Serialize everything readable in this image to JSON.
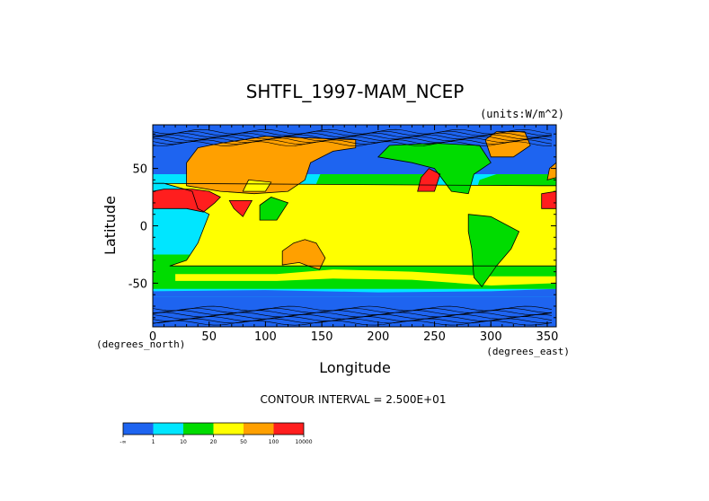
{
  "chart_data": {
    "type": "heatmap",
    "title": "SHTFL_1997-MAM_NCEP",
    "units": "(units:W/m^2)",
    "xlabel": "Longitude",
    "ylabel": "Latitude",
    "x_unit_note": "(degrees_east)",
    "y_unit_note": "(degrees_north)",
    "xlim": [
      0,
      358
    ],
    "ylim": [
      -88,
      88
    ],
    "xticks": [
      0,
      50,
      100,
      150,
      200,
      250,
      300,
      350
    ],
    "yticks": [
      -50,
      0,
      50
    ],
    "contour_interval_text": "CONTOUR INTERVAL = 2.500E+01",
    "legend": {
      "placement": "bottom-left",
      "colors": [
        "#1e64f0",
        "#00e6ff",
        "#00dc00",
        "#ffff00",
        "#ffa000",
        "#ff1e1e"
      ],
      "labels": [
        "-∞",
        "1",
        "10",
        "20",
        "50",
        "100",
        "10000"
      ]
    },
    "land_color": "#f5a000",
    "regions": [
      {
        "name": "ocean-tropics-cyan",
        "color": "#00e6ff",
        "polygon": [
          [
            0,
            -25
          ],
          [
            358,
            -25
          ],
          [
            358,
            25
          ],
          [
            0,
            25
          ]
        ]
      },
      {
        "name": "ocean-south-green",
        "color": "#00dc00",
        "polygon": [
          [
            0,
            -55
          ],
          [
            358,
            -55
          ],
          [
            358,
            -25
          ],
          [
            0,
            -25
          ]
        ]
      },
      {
        "name": "south-yellow-band",
        "color": "#ffff00",
        "polygon": [
          [
            20,
            -42
          ],
          [
            110,
            -42
          ],
          [
            160,
            -38
          ],
          [
            230,
            -40
          ],
          [
            300,
            -44
          ],
          [
            358,
            -44
          ],
          [
            358,
            -50
          ],
          [
            300,
            -52
          ],
          [
            230,
            -47
          ],
          [
            160,
            -46
          ],
          [
            110,
            -48
          ],
          [
            20,
            -48
          ]
        ]
      },
      {
        "name": "south-blue-band",
        "color": "#1e64f0",
        "polygon": [
          [
            0,
            -62
          ],
          [
            358,
            -62
          ],
          [
            358,
            -55
          ],
          [
            300,
            -57
          ],
          [
            200,
            -58
          ],
          [
            100,
            -56
          ],
          [
            0,
            -57
          ]
        ]
      },
      {
        "name": "antarctic-blue",
        "color": "#1e64f0",
        "polygon": [
          [
            0,
            -88
          ],
          [
            358,
            -88
          ],
          [
            358,
            -62
          ],
          [
            0,
            -62
          ]
        ]
      },
      {
        "name": "north-pacific-green",
        "color": "#00dc00",
        "polygon": [
          [
            140,
            25
          ],
          [
            240,
            25
          ],
          [
            245,
            45
          ],
          [
            200,
            50
          ],
          [
            150,
            48
          ]
        ]
      },
      {
        "name": "north-atlantic-green",
        "color": "#00dc00",
        "polygon": [
          [
            285,
            25
          ],
          [
            358,
            25
          ],
          [
            358,
            45
          ],
          [
            320,
            50
          ],
          [
            290,
            40
          ]
        ]
      },
      {
        "name": "north-blue",
        "color": "#1e64f0",
        "polygon": [
          [
            0,
            45
          ],
          [
            358,
            45
          ],
          [
            358,
            88
          ],
          [
            0,
            88
          ]
        ]
      },
      {
        "name": "tropic-green-strip",
        "color": "#00dc00",
        "polygon": [
          [
            60,
            5
          ],
          [
            100,
            5
          ],
          [
            100,
            15
          ],
          [
            60,
            15
          ]
        ]
      },
      {
        "name": "tropic-green-pacific",
        "color": "#00dc00",
        "polygon": [
          [
            200,
            -15
          ],
          [
            280,
            -15
          ],
          [
            280,
            -5
          ],
          [
            200,
            -5
          ]
        ]
      },
      {
        "name": "africa",
        "color": "#ffff00",
        "polygon": [
          [
            345,
            35
          ],
          [
            358,
            35
          ],
          [
            358,
            -35
          ],
          [
            15,
            -35
          ],
          [
            30,
            -30
          ],
          [
            40,
            -15
          ],
          [
            50,
            10
          ],
          [
            40,
            15
          ],
          [
            35,
            30
          ],
          [
            10,
            37
          ],
          [
            0,
            37
          ]
        ]
      },
      {
        "name": "arabia-sahara",
        "color": "#ff1e1e",
        "polygon": [
          [
            0,
            15
          ],
          [
            30,
            15
          ],
          [
            45,
            12
          ],
          [
            55,
            20
          ],
          [
            60,
            25
          ],
          [
            50,
            30
          ],
          [
            35,
            32
          ],
          [
            10,
            32
          ],
          [
            0,
            30
          ]
        ]
      },
      {
        "name": "sahara-west",
        "color": "#ff1e1e",
        "polygon": [
          [
            345,
            15
          ],
          [
            358,
            15
          ],
          [
            358,
            30
          ],
          [
            345,
            28
          ]
        ]
      },
      {
        "name": "india",
        "color": "#ff1e1e",
        "polygon": [
          [
            68,
            22
          ],
          [
            88,
            22
          ],
          [
            80,
            8
          ],
          [
            72,
            15
          ]
        ]
      },
      {
        "name": "asia",
        "color": "#ffa000",
        "polygon": [
          [
            30,
            35
          ],
          [
            60,
            30
          ],
          [
            90,
            28
          ],
          [
            120,
            30
          ],
          [
            135,
            40
          ],
          [
            140,
            55
          ],
          [
            160,
            65
          ],
          [
            180,
            68
          ],
          [
            180,
            75
          ],
          [
            100,
            78
          ],
          [
            60,
            72
          ],
          [
            40,
            68
          ],
          [
            30,
            55
          ]
        ]
      },
      {
        "name": "tibet",
        "color": "#ffff00",
        "polygon": [
          [
            80,
            30
          ],
          [
            100,
            30
          ],
          [
            105,
            38
          ],
          [
            85,
            40
          ]
        ]
      },
      {
        "name": "se-asia",
        "color": "#00dc00",
        "polygon": [
          [
            95,
            5
          ],
          [
            110,
            5
          ],
          [
            120,
            20
          ],
          [
            105,
            25
          ],
          [
            95,
            18
          ]
        ]
      },
      {
        "name": "australia",
        "color": "#ffa000",
        "polygon": [
          [
            115,
            -22
          ],
          [
            125,
            -15
          ],
          [
            135,
            -12
          ],
          [
            145,
            -15
          ],
          [
            153,
            -28
          ],
          [
            148,
            -38
          ],
          [
            138,
            -35
          ],
          [
            130,
            -32
          ],
          [
            115,
            -34
          ]
        ]
      },
      {
        "name": "n-america-west",
        "color": "#ff1e1e",
        "polygon": [
          [
            235,
            30
          ],
          [
            250,
            30
          ],
          [
            255,
            45
          ],
          [
            245,
            50
          ],
          [
            238,
            42
          ]
        ]
      },
      {
        "name": "n-america",
        "color": "#00dc00",
        "polygon": [
          [
            200,
            60
          ],
          [
            230,
            55
          ],
          [
            250,
            50
          ],
          [
            265,
            30
          ],
          [
            280,
            28
          ],
          [
            285,
            45
          ],
          [
            300,
            55
          ],
          [
            290,
            70
          ],
          [
            250,
            72
          ],
          [
            210,
            70
          ]
        ]
      },
      {
        "name": "s-america",
        "color": "#00dc00",
        "polygon": [
          [
            280,
            10
          ],
          [
            300,
            8
          ],
          [
            325,
            -5
          ],
          [
            318,
            -20
          ],
          [
            305,
            -35
          ],
          [
            292,
            -53
          ],
          [
            285,
            -45
          ],
          [
            283,
            -20
          ],
          [
            280,
            -5
          ]
        ]
      },
      {
        "name": "greenland",
        "color": "#ffa000",
        "polygon": [
          [
            300,
            60
          ],
          [
            320,
            60
          ],
          [
            335,
            70
          ],
          [
            330,
            82
          ],
          [
            305,
            82
          ],
          [
            295,
            75
          ]
        ]
      },
      {
        "name": "europe",
        "color": "#ffa000",
        "polygon": [
          [
            350,
            40
          ],
          [
            358,
            42
          ],
          [
            358,
            55
          ],
          [
            352,
            50
          ]
        ]
      }
    ]
  }
}
